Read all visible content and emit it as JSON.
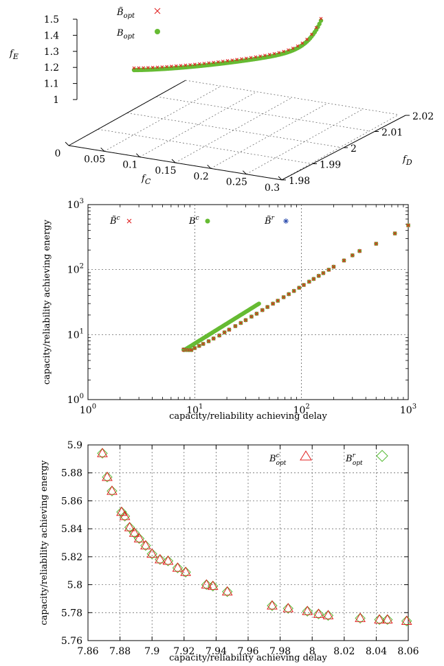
{
  "chart_data": [
    {
      "type": "scatter",
      "subtype": "3d",
      "zlabel": "f_E",
      "xlabel": "f_C",
      "ylabel": "f_D",
      "z_ticks": [
        "1",
        "1.1",
        "1.2",
        "1.3",
        "1.4",
        "1.5"
      ],
      "x_ticks": [
        "0",
        "0.05",
        "0.1",
        "0.15",
        "0.2",
        "0.25",
        "0.3"
      ],
      "y_ticks": [
        "1.98",
        "1.99",
        "2",
        "2.01",
        "2.02"
      ],
      "zlim": [
        1,
        1.5
      ],
      "xlim": [
        0,
        0.3
      ],
      "ylim": [
        1.98,
        2.02
      ],
      "grid": true,
      "legend": "top-left",
      "series": [
        {
          "name": "B̃_opt",
          "marker": "x",
          "color": "#e02020"
        },
        {
          "name": "B_opt",
          "marker": "dot",
          "color": "#66bb33"
        }
      ],
      "curve": {
        "description_points_fE": [
          1.2,
          1.21,
          1.22,
          1.24,
          1.26,
          1.28,
          1.3,
          1.33,
          1.36,
          1.4,
          1.45,
          1.5
        ],
        "description_points_fC": [
          0.0,
          0.03,
          0.06,
          0.09,
          0.12,
          0.15,
          0.18,
          0.21,
          0.24,
          0.27,
          0.29,
          0.3
        ]
      }
    },
    {
      "type": "scatter",
      "xlabel": "capacity/reliability achieving delay",
      "ylabel": "capacity/reliability achieving energy",
      "xscale": "log",
      "yscale": "log",
      "xlim": [
        1,
        1000
      ],
      "ylim": [
        1,
        1000
      ],
      "x_ticks": [
        "10",
        "10",
        "10",
        "10"
      ],
      "x_tick_exp": [
        "0",
        "1",
        "2",
        "3"
      ],
      "y_ticks": [
        "10",
        "10",
        "10",
        "10"
      ],
      "y_tick_exp": [
        "0",
        "1",
        "2",
        "3"
      ],
      "grid": true,
      "legend": "top",
      "series": [
        {
          "name": "B̃^c",
          "marker": "x",
          "color": "#e02020"
        },
        {
          "name": "B^c",
          "marker": "dot",
          "color": "#66bb33"
        },
        {
          "name": "B̃^r",
          "marker": "asterisk",
          "color": "#2244aa"
        }
      ],
      "x": [
        7.87,
        7.95,
        8.1,
        8.4,
        8.8,
        9.3,
        10,
        11,
        12,
        13.5,
        15,
        17,
        19,
        21,
        24,
        27,
        30,
        34,
        38,
        43,
        48,
        54,
        60,
        68,
        76,
        85,
        95,
        105,
        118,
        130,
        145,
        160,
        180,
        200,
        250,
        300,
        350,
        500,
        750,
        1000
      ],
      "y": [
        5.89,
        5.85,
        5.83,
        5.81,
        5.8,
        5.8,
        6.2,
        6.7,
        7.2,
        7.9,
        8.7,
        9.7,
        10.8,
        11.9,
        13.5,
        15.1,
        16.7,
        18.9,
        21.0,
        23.8,
        26.6,
        29.9,
        33.2,
        37.6,
        42.0,
        47.0,
        52.5,
        58.0,
        65.2,
        71.9,
        80.1,
        88.4,
        99.5,
        110.5,
        138,
        166,
        193,
        250,
        360,
        480
      ]
    },
    {
      "type": "scatter",
      "xlabel": "capacity/reliability achieving delay",
      "ylabel": "capacity/reliability achieving energy",
      "xlim": [
        7.86,
        8.06
      ],
      "ylim": [
        5.76,
        5.9
      ],
      "x_ticks": [
        "7.86",
        "7.88",
        "7.9",
        "7.92",
        "7.94",
        "7.96",
        "7.98",
        "8",
        "8.02",
        "8.04",
        "8.06"
      ],
      "y_ticks": [
        "5.76",
        "5.78",
        "5.8",
        "5.82",
        "5.84",
        "5.86",
        "5.88",
        "5.9"
      ],
      "grid": true,
      "legend": "top-right",
      "series": [
        {
          "name": "B^c_opt",
          "marker": "triangle",
          "color": "#e02020",
          "x": [
            7.869,
            7.872,
            7.875,
            7.881,
            7.883,
            7.886,
            7.889,
            7.892,
            7.896,
            7.9,
            7.905,
            7.91,
            7.916,
            7.921,
            7.934,
            7.938,
            7.947,
            7.975,
            7.985,
            7.997,
            8.004,
            8.01,
            8.03,
            8.042,
            8.047,
            8.059
          ],
          "y": [
            5.894,
            5.877,
            5.867,
            5.852,
            5.849,
            5.841,
            5.837,
            5.833,
            5.828,
            5.822,
            5.818,
            5.817,
            5.812,
            5.809,
            5.8,
            5.799,
            5.795,
            5.785,
            5.783,
            5.781,
            5.779,
            5.778,
            5.776,
            5.775,
            5.775,
            5.774
          ]
        },
        {
          "name": "B^r_opt",
          "marker": "diamond",
          "color": "#55bb33",
          "x": [
            7.869,
            7.872,
            7.875,
            7.881,
            7.883,
            7.886,
            7.889,
            7.892,
            7.896,
            7.9,
            7.905,
            7.91,
            7.916,
            7.921,
            7.934,
            7.938,
            7.947,
            7.975,
            7.985,
            7.997,
            8.004,
            8.01,
            8.03,
            8.042,
            8.047,
            8.059
          ],
          "y": [
            5.894,
            5.877,
            5.867,
            5.852,
            5.849,
            5.841,
            5.837,
            5.833,
            5.828,
            5.822,
            5.818,
            5.817,
            5.812,
            5.809,
            5.8,
            5.799,
            5.795,
            5.785,
            5.783,
            5.781,
            5.779,
            5.778,
            5.776,
            5.775,
            5.775,
            5.774
          ]
        }
      ]
    }
  ]
}
